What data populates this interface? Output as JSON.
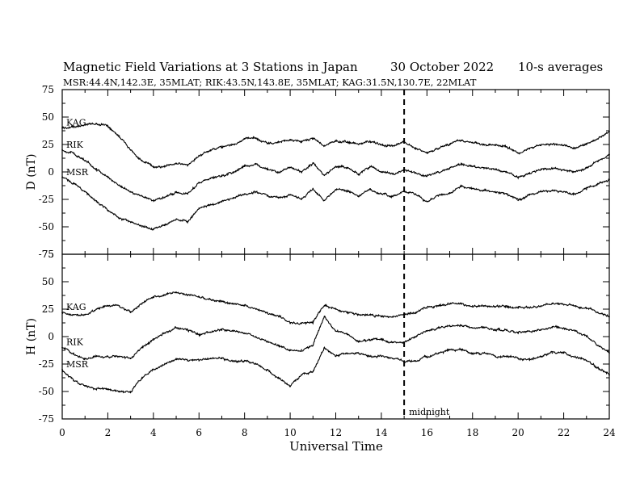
{
  "chart_data": {
    "type": "line",
    "title": "Magnetic Field Variations at 3 Stations in Japan",
    "date": "30 October 2022",
    "averaging": "10-s averages",
    "station_info": "MSR:44.4N,142.3E, 35MLAT;  RIK:43.5N,143.8E, 35MLAT;  KAG:31.5N,130.7E, 22MLAT",
    "xlabel": "Universal Time",
    "xlim": [
      0,
      24
    ],
    "xticks": [
      0,
      2,
      4,
      6,
      8,
      10,
      12,
      14,
      16,
      18,
      20,
      22,
      24
    ],
    "midnight": {
      "x": 15,
      "label": "midnight"
    },
    "panels": [
      {
        "name": "D",
        "ylabel": "D (nT)",
        "ylim": [
          -75,
          75
        ],
        "yticks": [
          75,
          50,
          25,
          0,
          -25,
          -50,
          -75
        ],
        "series": [
          {
            "name": "KAG",
            "x": [
              0,
              0.5,
              1,
              1.5,
              2,
              2.5,
              3,
              3.5,
              4,
              4.5,
              5,
              5.5,
              6,
              6.5,
              7,
              7.5,
              8,
              8.5,
              9,
              9.5,
              10,
              10.5,
              11,
              11.5,
              12,
              12.5,
              13,
              13.5,
              14,
              14.5,
              15,
              15.5,
              16,
              16.5,
              17,
              17.5,
              18,
              18.5,
              19,
              19.5,
              20,
              20.5,
              21,
              21.5,
              22,
              22.5,
              23,
              23.5,
              24
            ],
            "values": [
              40,
              41,
              43,
              44,
              42,
              33,
              20,
              10,
              5,
              5,
              8,
              6,
              15,
              20,
              22,
              25,
              30,
              31,
              26,
              27,
              29,
              28,
              30,
              24,
              28,
              27,
              25,
              28,
              25,
              24,
              27,
              22,
              18,
              21,
              25,
              29,
              27,
              25,
              24,
              23,
              17,
              21,
              24,
              25,
              24,
              22,
              25,
              30,
              37
            ]
          },
          {
            "name": "RIK",
            "x": [
              0,
              0.5,
              1,
              1.5,
              2,
              2.5,
              3,
              3.5,
              4,
              4.5,
              5,
              5.5,
              6,
              6.5,
              7,
              7.5,
              8,
              8.5,
              9,
              9.5,
              10,
              10.5,
              11,
              11.5,
              12,
              12.5,
              13,
              13.5,
              14,
              14.5,
              15,
              15.5,
              16,
              16.5,
              17,
              17.5,
              18,
              18.5,
              19,
              19.5,
              20,
              20.5,
              21,
              21.5,
              22,
              22.5,
              23,
              23.5,
              24
            ],
            "values": [
              20,
              17,
              10,
              3,
              -5,
              -12,
              -18,
              -22,
              -26,
              -23,
              -18,
              -20,
              -10,
              -6,
              -4,
              0,
              5,
              7,
              2,
              0,
              4,
              0,
              8,
              -3,
              5,
              4,
              -2,
              5,
              0,
              -2,
              2,
              -1,
              -4,
              0,
              3,
              7,
              5,
              3,
              2,
              0,
              -5,
              -1,
              2,
              3,
              2,
              0,
              4,
              10,
              16
            ]
          },
          {
            "name": "MSR",
            "x": [
              0,
              0.5,
              1,
              1.5,
              2,
              2.5,
              3,
              3.5,
              4,
              4.5,
              5,
              5.5,
              6,
              6.5,
              7,
              7.5,
              8,
              8.5,
              9,
              9.5,
              10,
              10.5,
              11,
              11.5,
              12,
              12.5,
              13,
              13.5,
              14,
              14.5,
              15,
              15.5,
              16,
              16.5,
              17,
              17.5,
              18,
              18.5,
              19,
              19.5,
              20,
              20.5,
              21,
              21.5,
              22,
              22.5,
              23,
              23.5,
              24
            ],
            "values": [
              -5,
              -10,
              -18,
              -27,
              -35,
              -42,
              -46,
              -50,
              -52,
              -48,
              -43,
              -45,
              -33,
              -30,
              -27,
              -24,
              -20,
              -18,
              -22,
              -23,
              -21,
              -25,
              -15,
              -26,
              -16,
              -17,
              -22,
              -16,
              -20,
              -22,
              -18,
              -20,
              -27,
              -22,
              -19,
              -13,
              -15,
              -17,
              -18,
              -20,
              -26,
              -21,
              -18,
              -17,
              -18,
              -20,
              -16,
              -11,
              -7
            ]
          }
        ]
      },
      {
        "name": "H",
        "ylabel": "H (nT)",
        "ylim": [
          -75,
          75
        ],
        "yticks": [
          75,
          50,
          25,
          0,
          -25,
          -50,
          -75
        ],
        "series": [
          {
            "name": "KAG",
            "x": [
              0,
              0.5,
              1,
              1.5,
              2,
              2.5,
              3,
              3.5,
              4,
              4.5,
              5,
              5.5,
              6,
              6.5,
              7,
              7.5,
              8,
              8.5,
              9,
              9.5,
              10,
              10.5,
              11,
              11.5,
              12,
              12.5,
              13,
              13.5,
              14,
              14.5,
              15,
              15.5,
              16,
              16.5,
              17,
              17.5,
              18,
              18.5,
              19,
              19.5,
              20,
              20.5,
              21,
              21.5,
              22,
              22.5,
              23,
              23.5,
              24
            ],
            "values": [
              22,
              20,
              20,
              25,
              28,
              28,
              22,
              30,
              36,
              38,
              40,
              38,
              36,
              34,
              32,
              30,
              28,
              25,
              22,
              18,
              12,
              12,
              14,
              28,
              25,
              22,
              20,
              20,
              18,
              18,
              20,
              22,
              26,
              28,
              30,
              30,
              28,
              28,
              27,
              27,
              26,
              26,
              28,
              30,
              29,
              28,
              26,
              22,
              18
            ]
          },
          {
            "name": "RIK",
            "x": [
              0,
              0.5,
              1,
              1.5,
              2,
              2.5,
              3,
              3.5,
              4,
              4.5,
              5,
              5.5,
              6,
              6.5,
              7,
              7.5,
              8,
              8.5,
              9,
              9.5,
              10,
              10.5,
              11,
              11.5,
              12,
              12.5,
              13,
              13.5,
              14,
              14.5,
              15,
              15.5,
              16,
              16.5,
              17,
              17.5,
              18,
              18.5,
              19,
              19.5,
              20,
              20.5,
              21,
              21.5,
              22,
              22.5,
              23,
              23.5,
              24
            ],
            "values": [
              -10,
              -15,
              -20,
              -18,
              -18,
              -18,
              -20,
              -10,
              -3,
              3,
              8,
              6,
              2,
              4,
              6,
              5,
              3,
              0,
              -5,
              -8,
              -12,
              -12,
              -8,
              18,
              5,
              2,
              -5,
              -3,
              -3,
              -5,
              -5,
              0,
              5,
              8,
              10,
              10,
              8,
              8,
              6,
              6,
              4,
              5,
              6,
              9,
              8,
              5,
              0,
              -8,
              -15
            ]
          },
          {
            "name": "MSR",
            "x": [
              0,
              0.5,
              1,
              1.5,
              2,
              2.5,
              3,
              3.5,
              4,
              4.5,
              5,
              5.5,
              6,
              6.5,
              7,
              7.5,
              8,
              8.5,
              9,
              9.5,
              10,
              10.5,
              11,
              11.5,
              12,
              12.5,
              13,
              13.5,
              14,
              14.5,
              15,
              15.5,
              16,
              16.5,
              17,
              17.5,
              18,
              18.5,
              19,
              19.5,
              20,
              20.5,
              21,
              21.5,
              22,
              22.5,
              23,
              23.5,
              24
            ],
            "values": [
              -30,
              -40,
              -45,
              -48,
              -48,
              -50,
              -50,
              -38,
              -30,
              -25,
              -20,
              -22,
              -22,
              -20,
              -20,
              -22,
              -22,
              -25,
              -30,
              -38,
              -45,
              -35,
              -32,
              -10,
              -18,
              -15,
              -15,
              -18,
              -18,
              -20,
              -22,
              -22,
              -18,
              -15,
              -12,
              -12,
              -15,
              -15,
              -18,
              -18,
              -20,
              -20,
              -18,
              -15,
              -15,
              -18,
              -22,
              -28,
              -35
            ]
          }
        ]
      }
    ]
  }
}
